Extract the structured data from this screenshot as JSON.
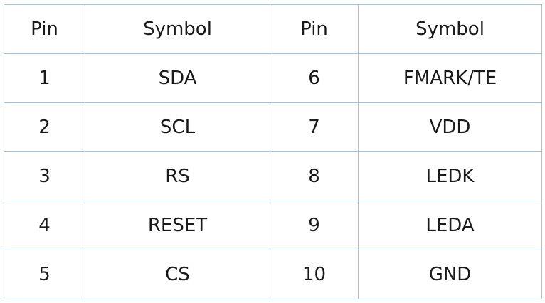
{
  "table": {
    "headers": [
      "Pin",
      "Symbol",
      "Pin",
      "Symbol"
    ],
    "rows": [
      [
        "1",
        "SDA",
        "6",
        "FMARK/TE"
      ],
      [
        "2",
        "SCL",
        "7",
        "VDD"
      ],
      [
        "3",
        "RS",
        "8",
        "LEDK"
      ],
      [
        "4",
        "RESET",
        "9",
        "LEDA"
      ],
      [
        "5",
        "CS",
        "10",
        "GND"
      ]
    ]
  }
}
